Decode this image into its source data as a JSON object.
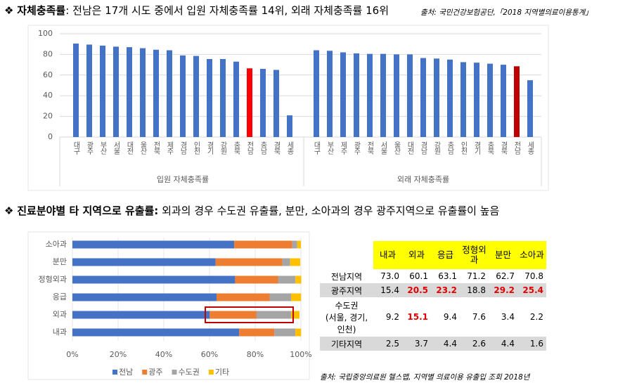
{
  "section1": {
    "bullet": "❖",
    "title_bold": "자체충족률",
    "title_rest": ": 전남은 17개 시도 중에서 입원 자체충족률 14위, 외래 자체충족률 16위",
    "source": "출처: 국민건강보험공단,「2018 지역별의료이용통계」"
  },
  "section2": {
    "bullet": "❖",
    "title_bold": "진료분야별 타 지역으로 유출률:",
    "title_rest": " 외과의 경우 수도권 유출률, 분만, 소아과의 경우 광주지역으로 유출률이 높음",
    "source": "출처: 국립중앙의료원 헬스맵, 지역별 의료이용 유출입 조회 2018년"
  },
  "chart_data": [
    {
      "type": "bar",
      "ylim": [
        0,
        100
      ],
      "yticks": [
        0,
        20,
        40,
        60,
        80,
        100
      ],
      "grid": true,
      "groups": [
        {
          "label": "입원 자체충족률",
          "categories": [
            "대구",
            "광주",
            "부산",
            "서울",
            "대전",
            "울산",
            "전북",
            "제주",
            "경남",
            "인천",
            "경기",
            "강원",
            "충북",
            "전남",
            "충남",
            "경북",
            "세종"
          ],
          "values": [
            90.5,
            89.5,
            88.5,
            87.5,
            87,
            86,
            84.5,
            84,
            79,
            78.5,
            75.5,
            75.5,
            73,
            66.5,
            66,
            65,
            21
          ],
          "colors": [
            "#4472c4",
            "#4472c4",
            "#4472c4",
            "#4472c4",
            "#4472c4",
            "#4472c4",
            "#4472c4",
            "#4472c4",
            "#4472c4",
            "#4472c4",
            "#4472c4",
            "#4472c4",
            "#4472c4",
            "#ff0000",
            "#4472c4",
            "#4472c4",
            "#4472c4"
          ]
        },
        {
          "label": "외래 자체충족률",
          "categories": [
            "대구",
            "부산",
            "제주",
            "광주",
            "전북",
            "서울",
            "울산",
            "대전",
            "경남",
            "강원",
            "충남",
            "인천",
            "경기",
            "충북",
            "경북",
            "전남",
            "세종"
          ],
          "values": [
            84,
            83.5,
            82,
            81,
            80.5,
            80.5,
            80,
            80,
            76.5,
            76,
            75,
            72.5,
            72,
            71,
            70,
            68.5,
            55
          ],
          "colors": [
            "#4472c4",
            "#4472c4",
            "#4472c4",
            "#4472c4",
            "#4472c4",
            "#4472c4",
            "#4472c4",
            "#4472c4",
            "#4472c4",
            "#4472c4",
            "#4472c4",
            "#4472c4",
            "#4472c4",
            "#4472c4",
            "#4472c4",
            "#c00000",
            "#4472c4"
          ]
        }
      ]
    },
    {
      "type": "stacked_barh",
      "xlim": [
        0,
        100
      ],
      "xticks": [
        {
          "value": 0,
          "label": "0%"
        },
        {
          "value": 20,
          "label": "20%"
        },
        {
          "value": 40,
          "label": "40%"
        },
        {
          "value": 60,
          "label": "60%"
        },
        {
          "value": 80,
          "label": "80%"
        },
        {
          "value": 100,
          "label": "100%"
        }
      ],
      "categories": [
        "내과",
        "외과",
        "응급",
        "정형외과",
        "분만",
        "소아과"
      ],
      "series": [
        {
          "name": "전남",
          "color": "#4472c4",
          "values": [
            73.0,
            60.1,
            63.1,
            71.2,
            62.7,
            70.8
          ]
        },
        {
          "name": "광주",
          "color": "#ed7d31",
          "values": [
            15.4,
            20.5,
            23.2,
            18.8,
            29.2,
            25.4
          ]
        },
        {
          "name": "수도권",
          "color": "#a5a5a5",
          "values": [
            9.2,
            15.1,
            9.4,
            7.6,
            3.4,
            2.2
          ]
        },
        {
          "name": "기타",
          "color": "#ffc000",
          "values": [
            2.5,
            3.7,
            4.4,
            2.6,
            4.4,
            1.6
          ]
        }
      ],
      "legend": "bottom"
    }
  ],
  "table": {
    "header": [
      "내과",
      "외과",
      "응급",
      "정형외과",
      "분만",
      "소아과"
    ],
    "rows": [
      {
        "label": "전남지역",
        "cells": [
          "73.0",
          "60.1",
          "63.1",
          "71.2",
          "62.7",
          "70.8"
        ],
        "red_cells": []
      },
      {
        "label": "광주지역",
        "cells": [
          "15.4",
          "20.5",
          "23.2",
          "18.8",
          "29.2",
          "25.4"
        ],
        "red_cells": [
          1,
          2,
          4,
          5
        ]
      },
      {
        "label": "수도권\n(서울, 경기,\n인천)",
        "cells": [
          "9.2",
          "15.1",
          "9.4",
          "7.6",
          "3.4",
          "2.2"
        ],
        "red_cells": [
          1
        ]
      },
      {
        "label": "기타지역",
        "cells": [
          "2.5",
          "3.7",
          "4.4",
          "2.6",
          "4.4",
          "1.6"
        ],
        "red_cells": []
      }
    ]
  }
}
